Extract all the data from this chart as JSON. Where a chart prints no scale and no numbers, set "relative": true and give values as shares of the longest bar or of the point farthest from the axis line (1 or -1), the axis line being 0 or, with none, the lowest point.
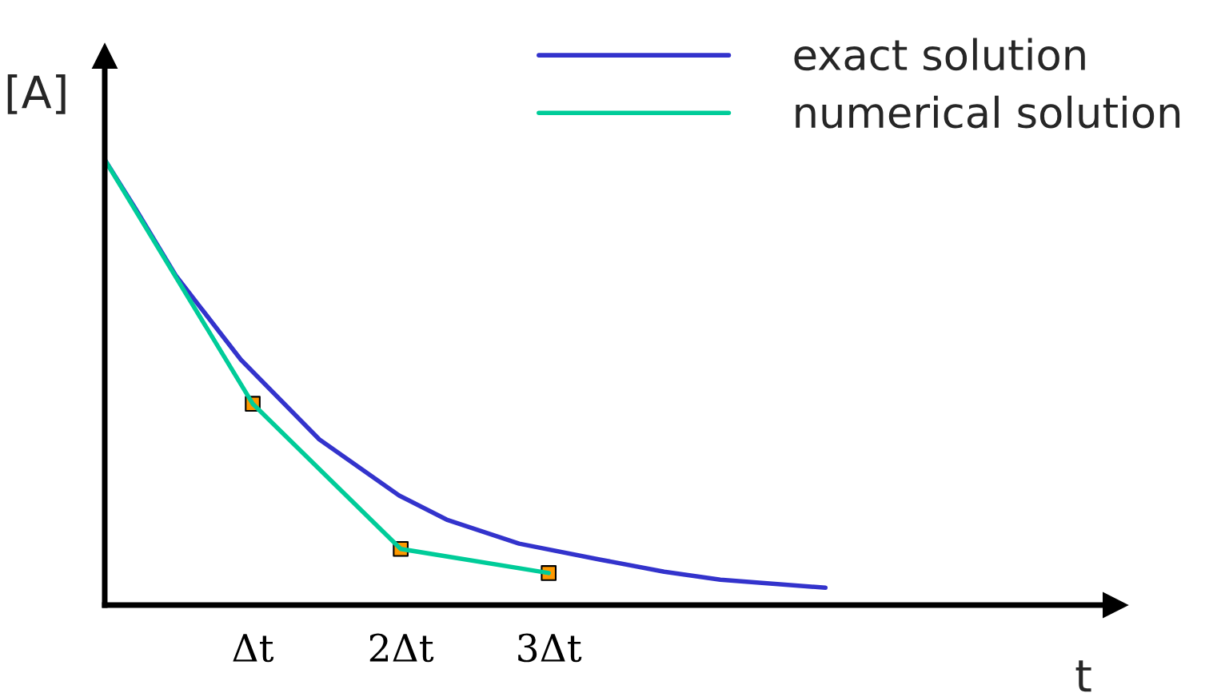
{
  "chart_data": {
    "type": "line",
    "relative": true,
    "xlabel": "t",
    "ylabel": "[A]",
    "xlim": [
      0,
      6.83
    ],
    "xticks": [
      {
        "value": 1,
        "label": "Δt"
      },
      {
        "value": 2,
        "label": "2Δt"
      },
      {
        "value": 3,
        "label": "3Δt"
      }
    ],
    "legend": "top right",
    "grid": false,
    "series": [
      {
        "name": "exact solution",
        "color": "#3333cc",
        "x": [
          0,
          0.21,
          0.48,
          0.92,
          1.45,
          1.99,
          2.31,
          2.8,
          3.35,
          3.78,
          4.16,
          4.87
        ],
        "values": [
          1,
          0.889,
          0.74,
          0.551,
          0.372,
          0.246,
          0.192,
          0.138,
          0.102,
          0.075,
          0.057,
          0.039
        ]
      },
      {
        "name": "numerical solution",
        "color": "#00cc99",
        "x": [
          0,
          1,
          2,
          3
        ],
        "values": [
          1,
          0.452,
          0.126,
          0.072
        ]
      },
      {
        "type": "scatter",
        "marker": "square",
        "color": "#ff9900",
        "x": [
          1,
          2,
          3
        ],
        "values": [
          0.452,
          0.126,
          0.072
        ]
      }
    ]
  }
}
